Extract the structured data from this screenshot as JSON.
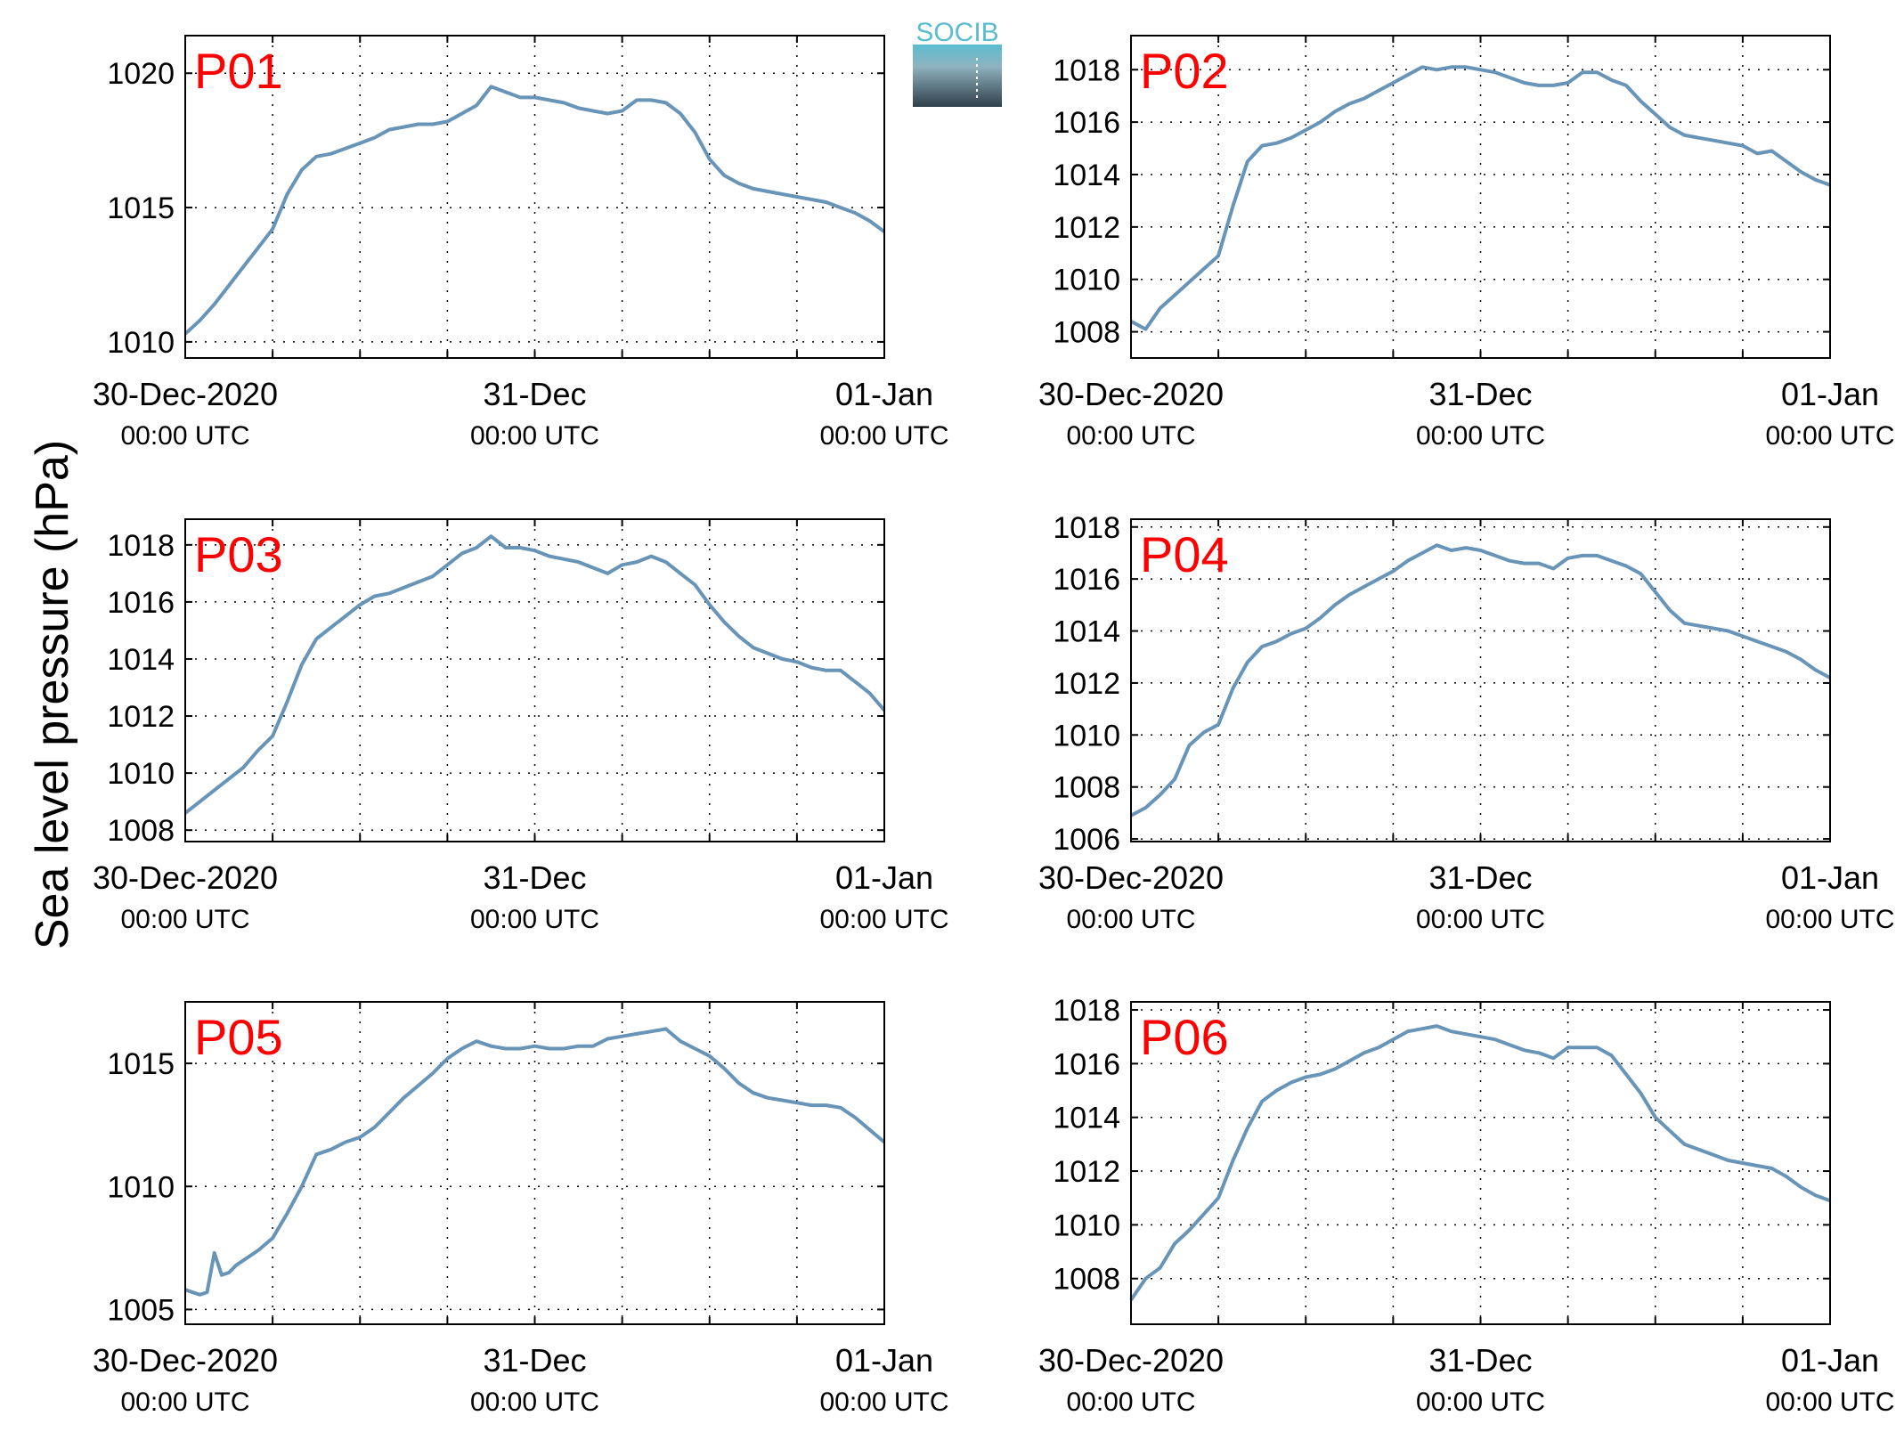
{
  "figure": {
    "ylabel": "Sea level pressure (hPa)",
    "logo_text": "SOCIB",
    "colors": {
      "line": "#6894b8",
      "panel_label": "#ff0000",
      "logo_top": "#5bbcd0",
      "logo_bottom": "#2f3f4a"
    }
  },
  "chart_data": [
    {
      "type": "line",
      "title": "P01",
      "xlabel": "",
      "ylabel": "",
      "x_tick_labels": [
        {
          "date": "30-Dec-2020",
          "time": "00:00 UTC"
        },
        {
          "date": "31-Dec",
          "time": "00:00 UTC"
        },
        {
          "date": "01-Jan",
          "time": "00:00 UTC"
        }
      ],
      "x_unit": "hours since 30-Dec-2020 00:00 UTC",
      "xlim": [
        0,
        48
      ],
      "ylim": [
        1009.4,
        1021.4
      ],
      "yticks": [
        1010,
        1015,
        1020
      ],
      "grid": true,
      "series": [
        {
          "x": [
            0,
            1,
            2,
            3,
            4,
            5,
            6,
            7,
            8,
            9,
            10,
            11,
            12,
            13,
            14,
            15,
            16,
            17,
            18,
            19,
            20,
            21,
            22,
            23,
            24,
            25,
            26,
            27,
            28,
            29,
            30,
            31,
            32,
            33,
            34,
            35,
            36,
            37,
            38,
            39,
            40,
            41,
            42,
            43,
            44,
            45,
            46,
            47,
            48
          ],
          "values": [
            1010.3,
            1010.8,
            1011.4,
            1012.1,
            1012.8,
            1013.5,
            1014.2,
            1015.5,
            1016.4,
            1016.9,
            1017.0,
            1017.2,
            1017.4,
            1017.6,
            1017.9,
            1018.0,
            1018.1,
            1018.1,
            1018.2,
            1018.5,
            1018.8,
            1019.5,
            1019.3,
            1019.1,
            1019.1,
            1019.0,
            1018.9,
            1018.7,
            1018.6,
            1018.5,
            1018.6,
            1019.0,
            1019.0,
            1018.9,
            1018.5,
            1017.8,
            1016.8,
            1016.2,
            1015.9,
            1015.7,
            1015.6,
            1015.5,
            1015.4,
            1015.3,
            1015.2,
            1015.0,
            1014.8,
            1014.5,
            1014.1
          ]
        }
      ]
    },
    {
      "type": "line",
      "title": "P02",
      "xlabel": "",
      "ylabel": "",
      "x_tick_labels": [
        {
          "date": "30-Dec-2020",
          "time": "00:00 UTC"
        },
        {
          "date": "31-Dec",
          "time": "00:00 UTC"
        },
        {
          "date": "01-Jan",
          "time": "00:00 UTC"
        }
      ],
      "x_unit": "hours since 30-Dec-2020 00:00 UTC",
      "xlim": [
        0,
        48
      ],
      "ylim": [
        1007.0,
        1019.3
      ],
      "yticks": [
        1008,
        1010,
        1012,
        1014,
        1016,
        1018
      ],
      "grid": true,
      "series": [
        {
          "x": [
            0,
            1,
            2,
            3,
            4,
            5,
            6,
            7,
            8,
            9,
            10,
            11,
            12,
            13,
            14,
            15,
            16,
            17,
            18,
            19,
            20,
            21,
            22,
            23,
            24,
            25,
            26,
            27,
            28,
            29,
            30,
            31,
            32,
            33,
            34,
            35,
            36,
            37,
            38,
            39,
            40,
            41,
            42,
            43,
            44,
            45,
            46,
            47,
            48
          ],
          "values": [
            1008.4,
            1008.1,
            1008.9,
            1009.4,
            1009.9,
            1010.4,
            1010.9,
            1012.8,
            1014.5,
            1015.1,
            1015.2,
            1015.4,
            1015.7,
            1016.0,
            1016.4,
            1016.7,
            1016.9,
            1017.2,
            1017.5,
            1017.8,
            1018.1,
            1018.0,
            1018.1,
            1018.1,
            1018.0,
            1017.9,
            1017.7,
            1017.5,
            1017.4,
            1017.4,
            1017.5,
            1017.9,
            1017.9,
            1017.6,
            1017.4,
            1016.8,
            1016.3,
            1015.8,
            1015.5,
            1015.4,
            1015.3,
            1015.2,
            1015.1,
            1014.8,
            1014.9,
            1014.5,
            1014.1,
            1013.8,
            1013.6
          ]
        }
      ]
    },
    {
      "type": "line",
      "title": "P03",
      "xlabel": "",
      "ylabel": "",
      "x_tick_labels": [
        {
          "date": "30-Dec-2020",
          "time": "00:00 UTC"
        },
        {
          "date": "31-Dec",
          "time": "00:00 UTC"
        },
        {
          "date": "01-Jan",
          "time": "00:00 UTC"
        }
      ],
      "x_unit": "hours since 30-Dec-2020 00:00 UTC",
      "xlim": [
        0,
        48
      ],
      "ylim": [
        1007.6,
        1018.9
      ],
      "yticks": [
        1008,
        1010,
        1012,
        1014,
        1016,
        1018
      ],
      "grid": true,
      "series": [
        {
          "x": [
            0,
            1,
            2,
            3,
            4,
            5,
            6,
            7,
            8,
            9,
            10,
            11,
            12,
            13,
            14,
            15,
            16,
            17,
            18,
            19,
            20,
            21,
            22,
            23,
            24,
            25,
            26,
            27,
            28,
            29,
            30,
            31,
            32,
            33,
            34,
            35,
            36,
            37,
            38,
            39,
            40,
            41,
            42,
            43,
            44,
            45,
            46,
            47,
            48
          ],
          "values": [
            1008.6,
            1009.0,
            1009.4,
            1009.8,
            1010.2,
            1010.8,
            1011.3,
            1012.5,
            1013.8,
            1014.7,
            1015.1,
            1015.5,
            1015.9,
            1016.2,
            1016.3,
            1016.5,
            1016.7,
            1016.9,
            1017.3,
            1017.7,
            1017.9,
            1018.3,
            1017.9,
            1017.9,
            1017.8,
            1017.6,
            1017.5,
            1017.4,
            1017.2,
            1017.0,
            1017.3,
            1017.4,
            1017.6,
            1017.4,
            1017.0,
            1016.6,
            1015.9,
            1015.3,
            1014.8,
            1014.4,
            1014.2,
            1014.0,
            1013.9,
            1013.7,
            1013.6,
            1013.6,
            1013.2,
            1012.8,
            1012.2
          ]
        }
      ]
    },
    {
      "type": "line",
      "title": "P04",
      "xlabel": "",
      "ylabel": "",
      "x_tick_labels": [
        {
          "date": "30-Dec-2020",
          "time": "00:00 UTC"
        },
        {
          "date": "31-Dec",
          "time": "00:00 UTC"
        },
        {
          "date": "01-Jan",
          "time": "00:00 UTC"
        }
      ],
      "x_unit": "hours since 30-Dec-2020 00:00 UTC",
      "xlim": [
        0,
        48
      ],
      "ylim": [
        1005.9,
        1018.3
      ],
      "yticks": [
        1006,
        1008,
        1010,
        1012,
        1014,
        1016,
        1018
      ],
      "grid": true,
      "series": [
        {
          "x": [
            0,
            1,
            2,
            3,
            4,
            5,
            6,
            7,
            8,
            9,
            10,
            11,
            12,
            13,
            14,
            15,
            16,
            17,
            18,
            19,
            20,
            21,
            22,
            23,
            24,
            25,
            26,
            27,
            28,
            29,
            30,
            31,
            32,
            33,
            34,
            35,
            36,
            37,
            38,
            39,
            40,
            41,
            42,
            43,
            44,
            45,
            46,
            47,
            48
          ],
          "values": [
            1006.9,
            1007.2,
            1007.7,
            1008.3,
            1009.6,
            1010.1,
            1010.4,
            1011.8,
            1012.8,
            1013.4,
            1013.6,
            1013.9,
            1014.1,
            1014.5,
            1015.0,
            1015.4,
            1015.7,
            1016.0,
            1016.3,
            1016.7,
            1017.0,
            1017.3,
            1017.1,
            1017.2,
            1017.1,
            1016.9,
            1016.7,
            1016.6,
            1016.6,
            1016.4,
            1016.8,
            1016.9,
            1016.9,
            1016.7,
            1016.5,
            1016.2,
            1015.5,
            1014.8,
            1014.3,
            1014.2,
            1014.1,
            1014.0,
            1013.8,
            1013.6,
            1013.4,
            1013.2,
            1012.9,
            1012.5,
            1012.2
          ]
        }
      ]
    },
    {
      "type": "line",
      "title": "P05",
      "xlabel": "",
      "ylabel": "",
      "x_tick_labels": [
        {
          "date": "30-Dec-2020",
          "time": "00:00 UTC"
        },
        {
          "date": "31-Dec",
          "time": "00:00 UTC"
        },
        {
          "date": "01-Jan",
          "time": "00:00 UTC"
        }
      ],
      "x_unit": "hours since 30-Dec-2020 00:00 UTC",
      "xlim": [
        0,
        48
      ],
      "ylim": [
        1004.4,
        1017.5
      ],
      "yticks": [
        1005,
        1010,
        1015
      ],
      "grid": true,
      "series": [
        {
          "x": [
            0,
            1,
            1.5,
            2,
            2.5,
            3,
            3.5,
            4,
            5,
            6,
            7,
            8,
            9,
            10,
            11,
            12,
            13,
            14,
            15,
            16,
            17,
            18,
            19,
            20,
            21,
            22,
            23,
            24,
            25,
            26,
            27,
            28,
            29,
            30,
            31,
            32,
            33,
            34,
            35,
            36,
            37,
            38,
            39,
            40,
            41,
            42,
            43,
            44,
            45,
            46,
            47,
            48
          ],
          "values": [
            1005.8,
            1005.6,
            1005.7,
            1007.3,
            1006.4,
            1006.5,
            1006.8,
            1007.0,
            1007.4,
            1007.9,
            1008.9,
            1010.0,
            1011.3,
            1011.5,
            1011.8,
            1012.0,
            1012.4,
            1013.0,
            1013.6,
            1014.1,
            1014.6,
            1015.2,
            1015.6,
            1015.9,
            1015.7,
            1015.6,
            1015.6,
            1015.7,
            1015.6,
            1015.6,
            1015.7,
            1015.7,
            1016.0,
            1016.1,
            1016.2,
            1016.3,
            1016.4,
            1015.9,
            1015.6,
            1015.3,
            1014.8,
            1014.2,
            1013.8,
            1013.6,
            1013.5,
            1013.4,
            1013.3,
            1013.3,
            1013.2,
            1012.8,
            1012.3,
            1011.8
          ]
        }
      ]
    },
    {
      "type": "line",
      "title": "P06",
      "xlabel": "",
      "ylabel": "",
      "x_tick_labels": [
        {
          "date": "30-Dec-2020",
          "time": "00:00 UTC"
        },
        {
          "date": "31-Dec",
          "time": "00:00 UTC"
        },
        {
          "date": "01-Jan",
          "time": "00:00 UTC"
        }
      ],
      "x_unit": "hours since 30-Dec-2020 00:00 UTC",
      "xlim": [
        0,
        48
      ],
      "ylim": [
        1006.3,
        1018.3
      ],
      "yticks": [
        1008,
        1010,
        1012,
        1014,
        1016,
        1018
      ],
      "grid": true,
      "series": [
        {
          "x": [
            0,
            1,
            2,
            3,
            4,
            5,
            6,
            7,
            8,
            9,
            10,
            11,
            12,
            13,
            14,
            15,
            16,
            17,
            18,
            19,
            20,
            21,
            22,
            23,
            24,
            25,
            26,
            27,
            28,
            29,
            30,
            31,
            32,
            33,
            34,
            35,
            36,
            37,
            38,
            39,
            40,
            41,
            42,
            43,
            44,
            45,
            46,
            47,
            48
          ],
          "values": [
            1007.2,
            1008.0,
            1008.4,
            1009.3,
            1009.8,
            1010.4,
            1011.0,
            1012.4,
            1013.6,
            1014.6,
            1015.0,
            1015.3,
            1015.5,
            1015.6,
            1015.8,
            1016.1,
            1016.4,
            1016.6,
            1016.9,
            1017.2,
            1017.3,
            1017.4,
            1017.2,
            1017.1,
            1017.0,
            1016.9,
            1016.7,
            1016.5,
            1016.4,
            1016.2,
            1016.6,
            1016.6,
            1016.6,
            1016.3,
            1015.6,
            1014.9,
            1014.0,
            1013.5,
            1013.0,
            1012.8,
            1012.6,
            1012.4,
            1012.3,
            1012.2,
            1012.1,
            1011.8,
            1011.4,
            1011.1,
            1010.9
          ]
        }
      ]
    }
  ]
}
